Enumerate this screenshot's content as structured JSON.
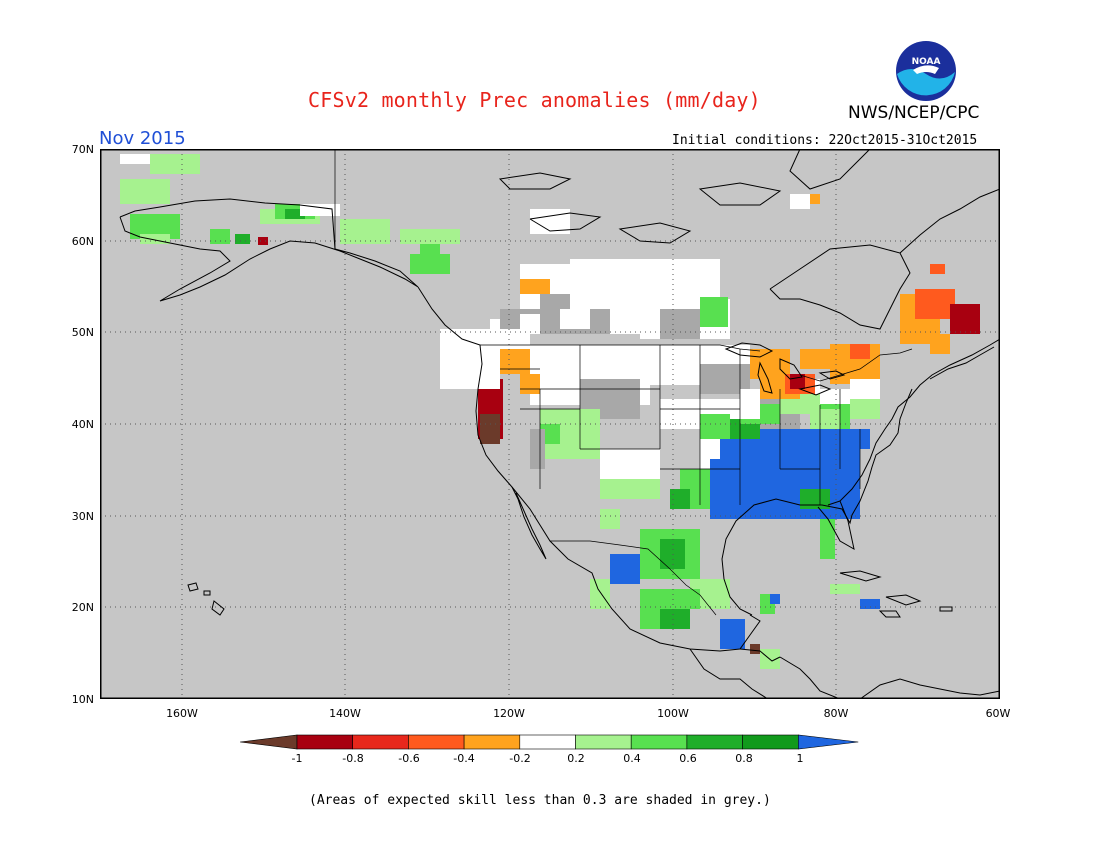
{
  "title": "CFSv2 monthly Prec anomalies (mm/day)",
  "agency": "NWS/NCEP/CPC",
  "logo_text": "NOAA",
  "month": "Nov 2015",
  "initial_conditions": "Initial conditions: 22Oct2015-31Oct2015",
  "footnote": "(Areas of expected skill less than 0.3 are shaded in grey.)",
  "map": {
    "lon_range": [
      -170,
      -60
    ],
    "lat_range": [
      10,
      70
    ],
    "lat_labels": [
      "10N",
      "20N",
      "30N",
      "40N",
      "50N",
      "60N",
      "70N"
    ],
    "lon_labels": [
      "160W",
      "140W",
      "120W",
      "100W",
      "80W",
      "60W"
    ]
  },
  "colorbar": {
    "colors": [
      "#6b3a2a",
      "#a80010",
      "#e8281c",
      "#ff5a1e",
      "#ffa31e",
      "#ffffff",
      "#a6f28f",
      "#58e050",
      "#1fae2a",
      "#119a1c",
      "#1f66e0"
    ],
    "tick_labels": [
      "-1",
      "-0.8",
      "-0.6",
      "-0.4",
      "-0.2",
      "0.2",
      "0.4",
      "0.6",
      "0.8",
      "1"
    ]
  },
  "colors": {
    "ocean_land_background": "#c6c6c6",
    "low_skill_grey": "#a8a8a8",
    "title_red": "#e8241c",
    "month_blue": "#1f4fd6"
  }
}
